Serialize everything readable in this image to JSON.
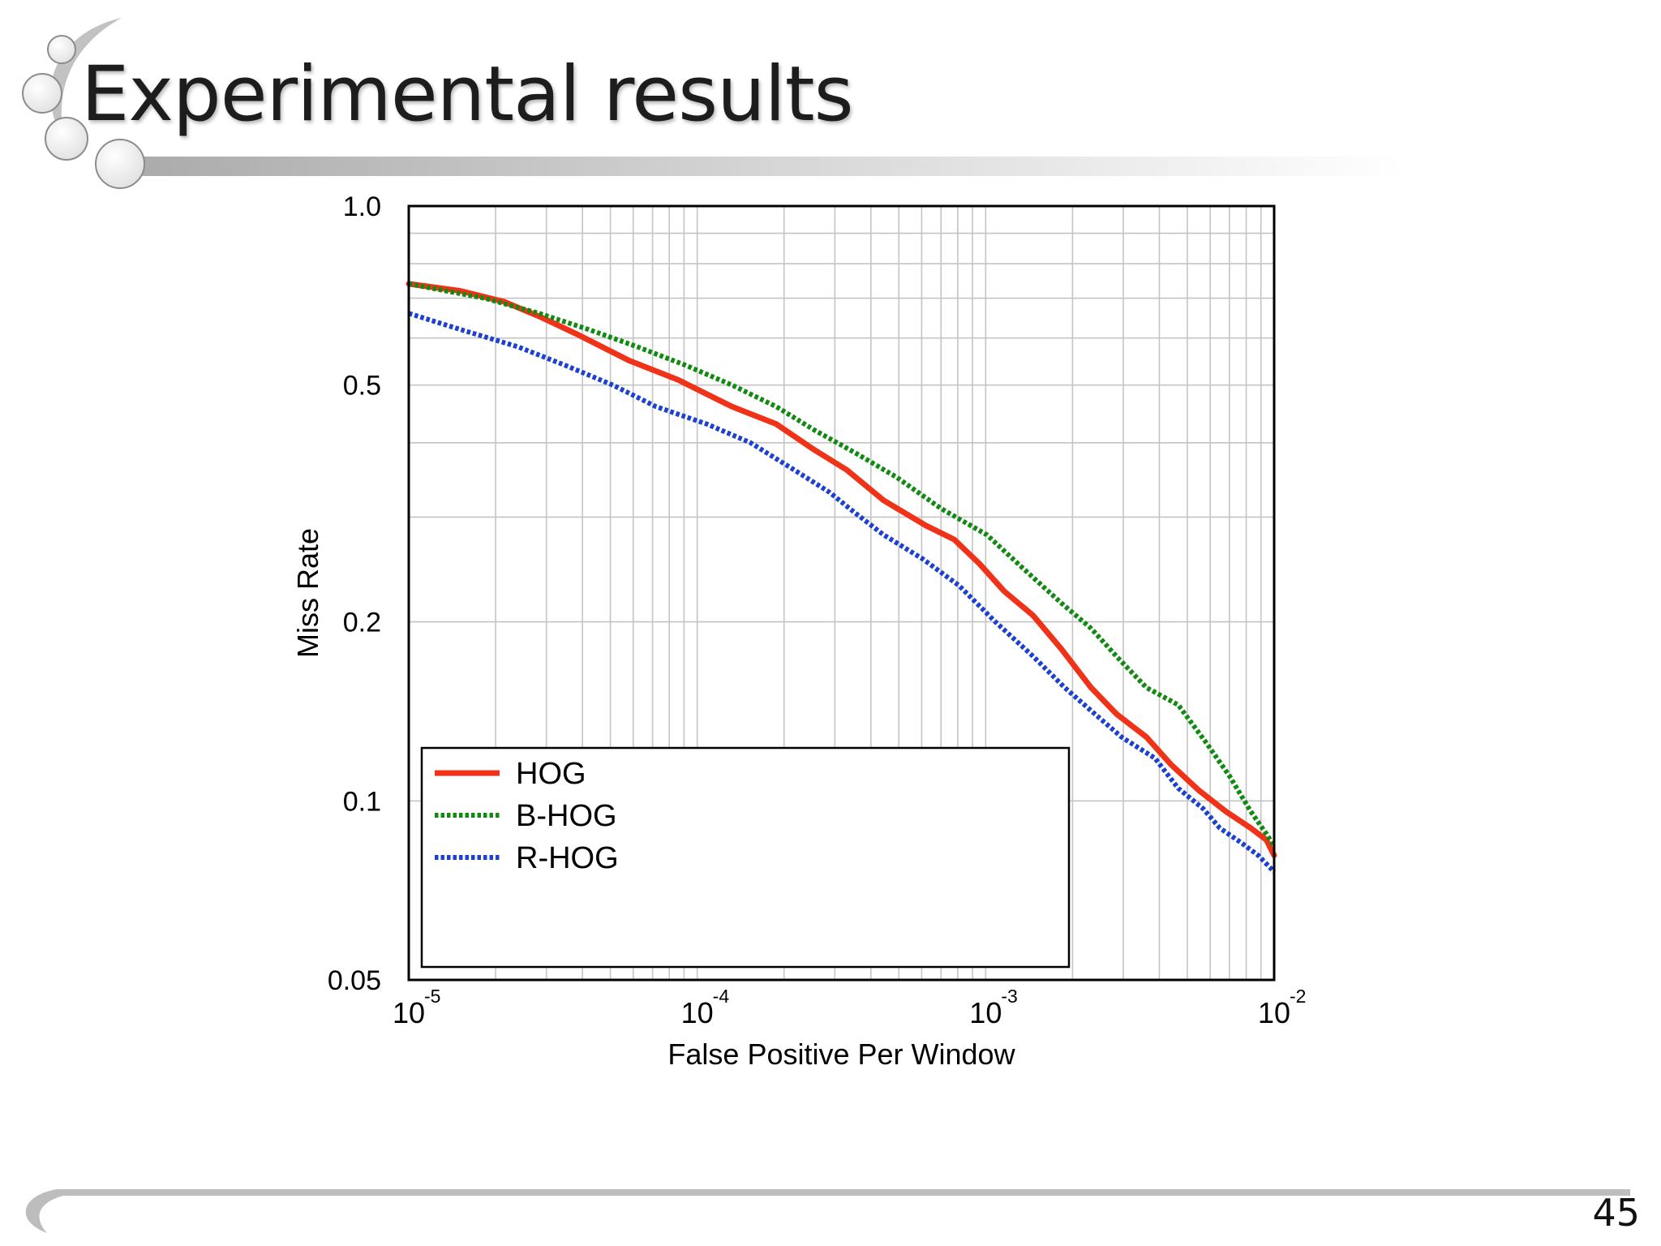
{
  "slide": {
    "title": "Experimental results",
    "page_number": "45"
  },
  "chart_data": {
    "type": "line",
    "xlabel": "False Positive Per Window",
    "ylabel": "Miss Rate",
    "x_scale": "log",
    "y_scale": "log",
    "xlim": [
      1e-05,
      0.01
    ],
    "ylim": [
      0.05,
      1.0
    ],
    "x_ticks": [
      {
        "base": "10",
        "exp": "-5",
        "value": 1e-05
      },
      {
        "base": "10",
        "exp": "-4",
        "value": 0.0001
      },
      {
        "base": "10",
        "exp": "-3",
        "value": 0.001
      },
      {
        "base": "10",
        "exp": "-2",
        "value": 0.01
      }
    ],
    "y_ticks": [
      {
        "label": "1.0",
        "value": 1.0
      },
      {
        "label": "0.5",
        "value": 0.5
      },
      {
        "label": "0.2",
        "value": 0.2
      },
      {
        "label": "0.1",
        "value": 0.1
      },
      {
        "label": "0.05",
        "value": 0.05
      }
    ],
    "grid": true,
    "legend_position": "bottom-left",
    "series": [
      {
        "name": "HOG",
        "color": "#f03218",
        "style": "solid",
        "points": [
          [
            1e-05,
            0.74
          ],
          [
            1.51e-05,
            0.72
          ],
          [
            2.15e-05,
            0.69
          ],
          [
            2.88e-05,
            0.65
          ],
          [
            3.8e-05,
            0.61
          ],
          [
            5.8e-05,
            0.55
          ],
          [
            8.6e-05,
            0.51
          ],
          [
            0.000132,
            0.46
          ],
          [
            0.000188,
            0.43
          ],
          [
            0.000253,
            0.39
          ],
          [
            0.00033,
            0.36
          ],
          [
            0.000443,
            0.32
          ],
          [
            0.000623,
            0.29
          ],
          [
            0.000778,
            0.275
          ],
          [
            0.000955,
            0.25
          ],
          [
            0.00116,
            0.225
          ],
          [
            0.00146,
            0.205
          ],
          [
            0.00183,
            0.18
          ],
          [
            0.00232,
            0.155
          ],
          [
            0.00284,
            0.14
          ],
          [
            0.00361,
            0.128
          ],
          [
            0.0044,
            0.115
          ],
          [
            0.0055,
            0.104
          ],
          [
            0.0068,
            0.096
          ],
          [
            0.0083,
            0.09
          ],
          [
            0.0094,
            0.086
          ],
          [
            0.01,
            0.081
          ]
        ]
      },
      {
        "name": "B-HOG",
        "color": "#118a11",
        "style": "dotted",
        "points": [
          [
            1e-05,
            0.74
          ],
          [
            1.83e-05,
            0.7
          ],
          [
            2.83e-05,
            0.66
          ],
          [
            4.2e-05,
            0.62
          ],
          [
            6.2e-05,
            0.58
          ],
          [
            9.1e-05,
            0.54
          ],
          [
            0.000132,
            0.5
          ],
          [
            0.000188,
            0.46
          ],
          [
            0.000255,
            0.42
          ],
          [
            0.000352,
            0.385
          ],
          [
            0.000491,
            0.35
          ],
          [
            0.000701,
            0.31
          ],
          [
            0.00101,
            0.28
          ],
          [
            0.00136,
            0.245
          ],
          [
            0.00183,
            0.215
          ],
          [
            0.00232,
            0.195
          ],
          [
            0.00284,
            0.175
          ],
          [
            0.00361,
            0.155
          ],
          [
            0.00465,
            0.145
          ],
          [
            0.00583,
            0.125
          ],
          [
            0.00701,
            0.11
          ],
          [
            0.0083,
            0.096
          ],
          [
            0.0094,
            0.088
          ],
          [
            0.01,
            0.084
          ]
        ]
      },
      {
        "name": "R-HOG",
        "color": "#1b40d2",
        "style": "dotted",
        "points": [
          [
            1e-05,
            0.66
          ],
          [
            1.51e-05,
            0.62
          ],
          [
            2.39e-05,
            0.58
          ],
          [
            3.48e-05,
            0.54
          ],
          [
            5.1e-05,
            0.5
          ],
          [
            7.2e-05,
            0.46
          ],
          [
            0.000108,
            0.43
          ],
          [
            0.000153,
            0.4
          ],
          [
            0.000217,
            0.36
          ],
          [
            0.000288,
            0.33
          ],
          [
            0.000352,
            0.305
          ],
          [
            0.000443,
            0.28
          ],
          [
            0.000606,
            0.255
          ],
          [
            0.000809,
            0.23
          ],
          [
            0.00108,
            0.2
          ],
          [
            0.00146,
            0.175
          ],
          [
            0.00188,
            0.155
          ],
          [
            0.00239,
            0.14
          ],
          [
            0.00296,
            0.128
          ],
          [
            0.00386,
            0.118
          ],
          [
            0.00465,
            0.105
          ],
          [
            0.00568,
            0.097
          ],
          [
            0.00648,
            0.09
          ],
          [
            0.0077,
            0.085
          ],
          [
            0.0088,
            0.081
          ],
          [
            0.01,
            0.076
          ]
        ]
      }
    ]
  }
}
